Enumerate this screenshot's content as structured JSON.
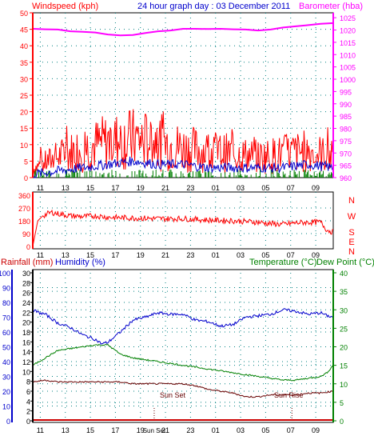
{
  "header": {
    "windspeed_label": "Windspeed (kph)",
    "title": "24 hour graph day : 03 December 2011",
    "barometer_label": "Barometer (hba)"
  },
  "time_labels": [
    "11",
    "13",
    "15",
    "17",
    "19",
    "21",
    "23",
    "01",
    "03",
    "05",
    "07",
    "09"
  ],
  "bottom_time_labels": [
    "11",
    "13",
    "15",
    "17",
    "19",
    "Sun Set",
    "21",
    "23",
    "01",
    "03",
    "05",
    "07",
    "09"
  ],
  "compass": [
    "N",
    "W",
    "S",
    "E",
    "N"
  ],
  "colors": {
    "wind_speed": "#ff0000",
    "wind_gust_avg": "#0000cc",
    "wind_green": "#008000",
    "barometer": "#ff00ff",
    "direction": "#ff0000",
    "humidity": "#0000cc",
    "temperature": "#008000",
    "dew_point": "#660000",
    "rainfall": "#cc0000",
    "axis_left": "#ff0000",
    "axis_right_top": "#ff00ff",
    "axis_right_bottom": "#008000",
    "axis_blue": "#0000cc",
    "grid": "#008080"
  },
  "labels": {
    "rainfall": "Rainfall (mm)",
    "humidity": "Humidity (%)",
    "temperature": "Temperature (°C)",
    "dew_point": "Dew Point (°C)",
    "sun_set": "Sun Set",
    "sun_rise": "Sun Rise"
  },
  "chart_data": [
    {
      "type": "line",
      "x_ticks": [
        "11",
        "13",
        "15",
        "17",
        "19",
        "21",
        "23",
        "01",
        "03",
        "05",
        "07",
        "09"
      ],
      "y_left": {
        "label": "Windspeed (kph)",
        "ticks": [
          0,
          5,
          10,
          15,
          20,
          25,
          30,
          35,
          40,
          45,
          50
        ],
        "ylim": [
          0,
          50
        ]
      },
      "y_right": {
        "label": "Barometer (hba)",
        "ticks": [
          960,
          965,
          970,
          975,
          980,
          985,
          990,
          995,
          1000,
          1005,
          1010,
          1015,
          1020,
          1025
        ],
        "ylim": [
          960,
          1027
        ]
      },
      "grid": true,
      "series": [
        {
          "axis": "left",
          "color": "#ff0000",
          "hours": [
            0,
            2,
            4,
            6,
            8,
            10,
            12,
            14,
            16,
            18,
            20,
            22,
            24
          ],
          "values": [
            3,
            7,
            10,
            12,
            13,
            12,
            10,
            9,
            8,
            7,
            8,
            9,
            7
          ]
        },
        {
          "axis": "left",
          "color": "#0000cc",
          "hours": [
            0,
            2,
            4,
            6,
            8,
            10,
            12,
            14,
            16,
            18,
            20,
            22,
            24
          ],
          "values": [
            1,
            2,
            3,
            4,
            5,
            4,
            4,
            3,
            3,
            3,
            3,
            4,
            3
          ]
        },
        {
          "axis": "right",
          "color": "#ff00ff",
          "hours": [
            0,
            1,
            2,
            3,
            4,
            5,
            6,
            7,
            8,
            9,
            10,
            11,
            12,
            13,
            14,
            15,
            16,
            17,
            18,
            19,
            20,
            21,
            22,
            23,
            24
          ],
          "values": [
            1020.5,
            1020.3,
            1020.2,
            1019.5,
            1019.3,
            1019,
            1018.2,
            1017.8,
            1018,
            1018.8,
            1019.5,
            1019.8,
            1020.5,
            1020.5,
            1020.4,
            1020.5,
            1020.3,
            1020.2,
            1019.8,
            1020.2,
            1021,
            1021.5,
            1022,
            1022.5,
            1022.8
          ]
        }
      ]
    },
    {
      "type": "line",
      "x_ticks": [
        "11",
        "13",
        "15",
        "17",
        "19",
        "21",
        "23",
        "01",
        "03",
        "05",
        "07",
        "09"
      ],
      "y_left": {
        "ticks": [
          0,
          90,
          180,
          270,
          360
        ],
        "ylim": [
          0,
          360
        ]
      },
      "y_right_labels": [
        "N",
        "W",
        "S",
        "E",
        "N"
      ],
      "grid": true,
      "series": [
        {
          "color": "#ff0000",
          "hours": [
            0,
            0.4,
            0.8,
            1.5,
            2,
            3,
            4,
            5,
            6,
            8,
            10,
            12,
            14,
            16,
            18,
            19,
            20,
            21,
            22,
            23,
            23.5,
            24
          ],
          "values": [
            0,
            180,
            215,
            240,
            230,
            215,
            210,
            215,
            205,
            200,
            195,
            195,
            185,
            180,
            170,
            160,
            155,
            165,
            170,
            170,
            115,
            100
          ]
        }
      ]
    },
    {
      "type": "line",
      "x_ticks": [
        "11",
        "13",
        "15",
        "17",
        "19",
        "Sun Set",
        "21",
        "23",
        "01",
        "03",
        "05",
        "07",
        "09"
      ],
      "y_left_outer": {
        "label": "Rainfall (mm)",
        "ticks": [
          0,
          10,
          20,
          30,
          40,
          50,
          60,
          70,
          80,
          90,
          100
        ],
        "ylim": [
          0,
          100
        ]
      },
      "y_left_inner": {
        "label": "Humidity (%)",
        "ticks": [
          0,
          2,
          4,
          6,
          8,
          10,
          12,
          14,
          16,
          18,
          20,
          22,
          24,
          26,
          28,
          30
        ],
        "ylim": [
          0,
          30
        ]
      },
      "y_right": {
        "label": "Temperature (°C)",
        "ticks": [
          0,
          5,
          10,
          15,
          20,
          25,
          30,
          35,
          40
        ],
        "ylim": [
          0,
          40
        ]
      },
      "grid": true,
      "series": [
        {
          "name": "Humidity (%)",
          "axis": "outer",
          "color": "#0000cc",
          "hours": [
            0,
            0.5,
            1,
            2,
            3,
            4,
            5,
            5.5,
            6,
            7,
            8,
            9,
            10,
            11,
            12,
            13,
            14,
            15,
            16,
            17,
            18,
            19,
            20,
            21,
            22,
            23,
            23.5,
            24
          ],
          "values": [
            75,
            73,
            72,
            66,
            63,
            58,
            55,
            52,
            53,
            60,
            68,
            70,
            73,
            72,
            72,
            68,
            67,
            64,
            65,
            70,
            71,
            72,
            75,
            74,
            72,
            73,
            71,
            70
          ]
        },
        {
          "name": "Temperature (°C)",
          "axis": "right",
          "color": "#008000",
          "hours": [
            0,
            0.5,
            1,
            2,
            3,
            4,
            5,
            6,
            7,
            8,
            9,
            10,
            11,
            12,
            13,
            14,
            15,
            16,
            17,
            18,
            19,
            20,
            21,
            22,
            23,
            23.5,
            24
          ],
          "values": [
            15,
            16,
            17,
            19,
            19.5,
            20,
            20.5,
            20.5,
            18,
            17,
            16.5,
            16,
            15.5,
            15,
            14.5,
            14,
            13.5,
            13,
            12.5,
            12,
            11.5,
            11,
            11,
            11.5,
            12,
            13,
            15
          ]
        },
        {
          "name": "Dew Point (°C)",
          "axis": "right",
          "color": "#660000",
          "hours": [
            0,
            1,
            2,
            3,
            4,
            5,
            6,
            7,
            8,
            9,
            10,
            11,
            12,
            13,
            14,
            15,
            16,
            17,
            18,
            19,
            20,
            21,
            22,
            23,
            24
          ],
          "values": [
            10.5,
            11,
            10.5,
            10.5,
            10.5,
            10.5,
            10.5,
            10.5,
            10,
            10,
            10,
            10,
            10,
            9.5,
            8.5,
            8,
            7.5,
            6.5,
            6.5,
            7,
            7,
            7,
            7.5,
            7.5,
            8
          ]
        },
        {
          "name": "Rainfall (mm)",
          "axis": "outer",
          "color": "#cc0000",
          "hours": [
            0,
            24
          ],
          "values": [
            0,
            0
          ]
        }
      ]
    }
  ]
}
